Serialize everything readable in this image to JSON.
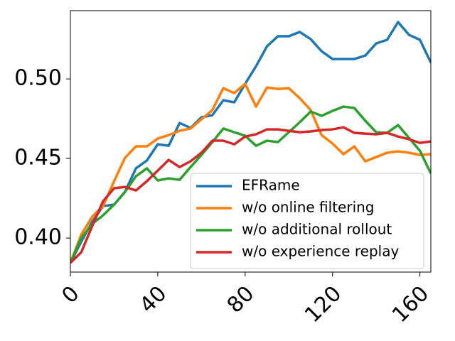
{
  "chart_data": {
    "type": "line",
    "x": [
      0,
      5,
      10,
      15,
      20,
      25,
      30,
      35,
      40,
      45,
      50,
      55,
      60,
      65,
      70,
      75,
      80,
      85,
      90,
      95,
      100,
      105,
      110,
      115,
      120,
      125,
      130,
      135,
      140,
      145,
      150,
      155,
      160,
      165
    ],
    "series": [
      {
        "name": "EFRame",
        "color": "#1f77b4",
        "values": [
          0.3844,
          0.3978,
          0.4103,
          0.4201,
          0.421,
          0.429,
          0.4438,
          0.4487,
          0.4589,
          0.458,
          0.4723,
          0.4692,
          0.4759,
          0.4772,
          0.4866,
          0.4853,
          0.4969,
          0.508,
          0.5205,
          0.5268,
          0.5268,
          0.5295,
          0.525,
          0.5174,
          0.5125,
          0.5125,
          0.5125,
          0.5147,
          0.5223,
          0.5246,
          0.5357,
          0.5277,
          0.5246,
          0.5103
        ]
      },
      {
        "name": "w/o online filtering",
        "color": "#ff7f0e",
        "values": [
          0.3844,
          0.4022,
          0.4134,
          0.4201,
          0.4357,
          0.4504,
          0.4576,
          0.4576,
          0.4625,
          0.4647,
          0.4674,
          0.4688,
          0.4746,
          0.4804,
          0.4942,
          0.4911,
          0.4969,
          0.4826,
          0.4946,
          0.4937,
          0.4942,
          0.4879,
          0.4804,
          0.4647,
          0.4594,
          0.4527,
          0.4576,
          0.4482,
          0.4509,
          0.4536,
          0.4545,
          0.4536,
          0.4522,
          0.4527
        ]
      },
      {
        "name": "w/o additional rollout",
        "color": "#2ca02c",
        "values": [
          0.3844,
          0.4,
          0.4089,
          0.4143,
          0.421,
          0.429,
          0.4388,
          0.4438,
          0.4362,
          0.4375,
          0.4366,
          0.4446,
          0.4522,
          0.4603,
          0.4688,
          0.4665,
          0.4643,
          0.458,
          0.4612,
          0.4603,
          0.4665,
          0.4728,
          0.4795,
          0.4768,
          0.4799,
          0.4826,
          0.4817,
          0.4737,
          0.4665,
          0.4661,
          0.471,
          0.4629,
          0.4549,
          0.4406
        ]
      },
      {
        "name": "w/o experience replay",
        "color": "#d62728",
        "values": [
          0.3844,
          0.3911,
          0.4076,
          0.4232,
          0.4313,
          0.4321,
          0.4299,
          0.4357,
          0.4424,
          0.4491,
          0.4446,
          0.4482,
          0.4536,
          0.4612,
          0.4612,
          0.4589,
          0.4638,
          0.4652,
          0.4683,
          0.4683,
          0.4674,
          0.4665,
          0.467,
          0.4679,
          0.4683,
          0.4696,
          0.4661,
          0.4656,
          0.4652,
          0.4661,
          0.4638,
          0.4621,
          0.4598,
          0.4607
        ]
      }
    ],
    "xlim": [
      0,
      165
    ],
    "xticks": [
      0,
      40,
      80,
      120,
      160
    ],
    "ylim": [
      0.3786,
      0.5429
    ],
    "yticks": [
      {
        "value": 0.4,
        "label": "0.40"
      },
      {
        "value": 0.45,
        "label": "0.45"
      },
      {
        "value": 0.5,
        "label": "0.50"
      }
    ],
    "legend": "lower right",
    "grid": false
  }
}
